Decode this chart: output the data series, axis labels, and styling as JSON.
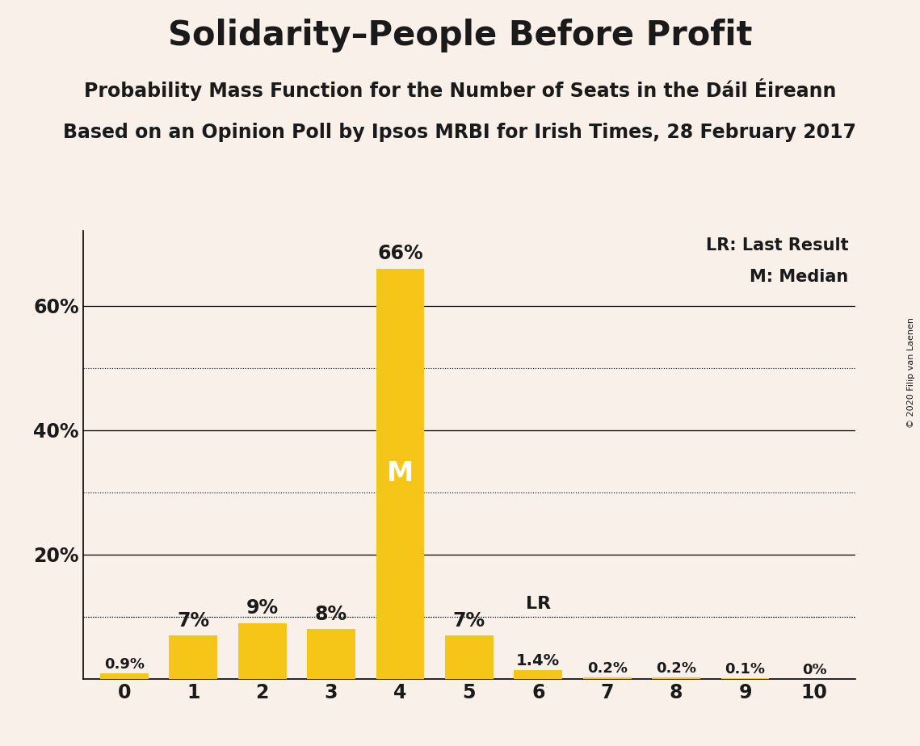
{
  "title": "Solidarity–People Before Profit",
  "subtitle1": "Probability Mass Function for the Number of Seats in the Dáil Éireann",
  "subtitle2": "Based on an Opinion Poll by Ipsos MRBI for Irish Times, 28 February 2017",
  "copyright": "© 2020 Filip van Laenen",
  "categories": [
    0,
    1,
    2,
    3,
    4,
    5,
    6,
    7,
    8,
    9,
    10
  ],
  "values": [
    0.9,
    7.0,
    9.0,
    8.0,
    66.0,
    7.0,
    1.4,
    0.2,
    0.2,
    0.1,
    0.0
  ],
  "bar_color": "#F5C518",
  "background_color": "#FAF0EA",
  "text_color": "#1a1a1a",
  "median_bar": 4,
  "last_result_bar": 6,
  "legend_lr": "LR: Last Result",
  "legend_m": "M: Median",
  "ylim": [
    0,
    72
  ],
  "major_gridlines": [
    20,
    40,
    60
  ],
  "minor_gridlines": [
    10,
    30,
    50
  ],
  "title_fontsize": 30,
  "subtitle_fontsize": 17,
  "label_fontsize": 15,
  "tick_fontsize": 17,
  "legend_fontsize": 15
}
